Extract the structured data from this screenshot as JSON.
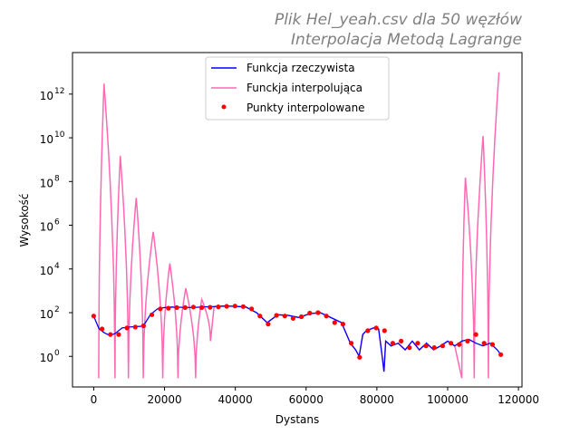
{
  "chart_data": {
    "type": "line",
    "title_lines": [
      "Plik Hel_yeah.csv dla 50 węzłów",
      "Interpolacja Metodą Lagrange"
    ],
    "xlabel": "Dystans",
    "ylabel": "Wysokość",
    "y_scale": "log",
    "xlim": [
      -6000,
      121000
    ],
    "ylim_log10": [
      -1.4,
      13.9
    ],
    "x_ticks": [
      0,
      20000,
      40000,
      60000,
      80000,
      100000,
      120000
    ],
    "x_tick_labels": [
      "0",
      "20000",
      "40000",
      "60000",
      "80000",
      "100000",
      "120000"
    ],
    "y_ticks_exponent": [
      0,
      2,
      4,
      6,
      8,
      10,
      12
    ],
    "y_tick_base": "10",
    "legend_position": "upper center",
    "grid": false,
    "colors": {
      "real": "#0000ff",
      "interp": "#ff69b4",
      "points": "#ff0000",
      "title": "#808080"
    },
    "series": [
      {
        "name": "Funkcja rzeczywista",
        "kind": "line",
        "x": [
          0,
          1500,
          3000,
          4500,
          6000,
          8000,
          10000,
          12000,
          14000,
          16000,
          18000,
          20000,
          22000,
          25000,
          28000,
          31000,
          34000,
          37000,
          40000,
          43000,
          46000,
          49000,
          52000,
          55000,
          58000,
          61000,
          64000,
          67000,
          70000,
          72500,
          74000,
          75000,
          76000,
          77000,
          79000,
          80500,
          81500,
          82000,
          82500,
          84000,
          86000,
          88000,
          90000,
          92000,
          94000,
          96000,
          98000,
          100000,
          102000,
          104000,
          106000,
          108000,
          110000,
          112000,
          114000,
          115000
        ],
        "y": [
          70,
          18,
          12,
          9,
          11,
          20,
          22,
          23,
          24,
          80,
          150,
          170,
          180,
          175,
          170,
          185,
          190,
          200,
          195,
          180,
          100,
          35,
          80,
          75,
          60,
          90,
          100,
          60,
          35,
          4,
          2,
          1,
          10,
          15,
          20,
          18,
          1,
          0.2,
          5,
          3,
          4,
          2,
          5,
          2,
          4,
          2,
          3,
          5,
          3,
          5,
          6,
          4,
          3,
          4,
          2,
          1.2
        ]
      },
      {
        "name": "Funckja interpolująca",
        "kind": "line",
        "peaks": [
          {
            "x": 1400,
            "y": 0.1
          },
          {
            "x": 2900,
            "y": 3000000000000.0
          },
          {
            "x": 6000,
            "y": 0.1
          },
          {
            "x": 7500,
            "y": 1500000000.0
          },
          {
            "x": 9800,
            "y": 0.1
          },
          {
            "x": 12000,
            "y": 18000000.0
          },
          {
            "x": 14000,
            "y": 0.1
          },
          {
            "x": 16800,
            "y": 500000.0
          },
          {
            "x": 19500,
            "y": 0.1
          },
          {
            "x": 21500,
            "y": 18000.0
          },
          {
            "x": 23800,
            "y": 0.1
          },
          {
            "x": 26000,
            "y": 1300.0
          },
          {
            "x": 28800,
            "y": 0.1
          },
          {
            "x": 30500,
            "y": 400.0
          },
          {
            "x": 33000,
            "y": 5
          },
          {
            "x": 104000,
            "y": 0.1
          },
          {
            "x": 105000,
            "y": 150000000.0
          },
          {
            "x": 107500,
            "y": 0.1
          },
          {
            "x": 110000,
            "y": 12000000000.0
          },
          {
            "x": 111500,
            "y": 0.1
          },
          {
            "x": 114500,
            "y": 10000000000000.0
          }
        ]
      },
      {
        "name": "Punkty interpolowane",
        "kind": "points",
        "x": [
          0,
          2347,
          4694,
          7041,
          9388,
          11735,
          14082,
          16429,
          18776,
          21123,
          23470,
          25817,
          28164,
          30511,
          32858,
          35205,
          37552,
          39899,
          42246,
          44593,
          46940,
          49287,
          51634,
          53981,
          56328,
          58675,
          61022,
          63369,
          65716,
          68063,
          70410,
          72757,
          75104,
          77451,
          79798,
          82145,
          84492,
          86839,
          89186,
          91533,
          93880,
          96227,
          98574,
          100921,
          103268,
          105615,
          107962,
          110309,
          112656,
          115000
        ],
        "y": [
          70,
          18,
          10,
          10,
          20,
          22,
          25,
          80,
          150,
          160,
          170,
          170,
          180,
          170,
          175,
          185,
          195,
          200,
          190,
          150,
          70,
          30,
          75,
          70,
          55,
          65,
          95,
          100,
          70,
          35,
          30,
          4,
          0.9,
          15,
          20,
          15,
          4,
          5,
          2.5,
          4,
          3,
          2.5,
          3,
          4,
          3.5,
          5,
          10,
          4,
          3.5,
          1.2
        ]
      }
    ]
  }
}
